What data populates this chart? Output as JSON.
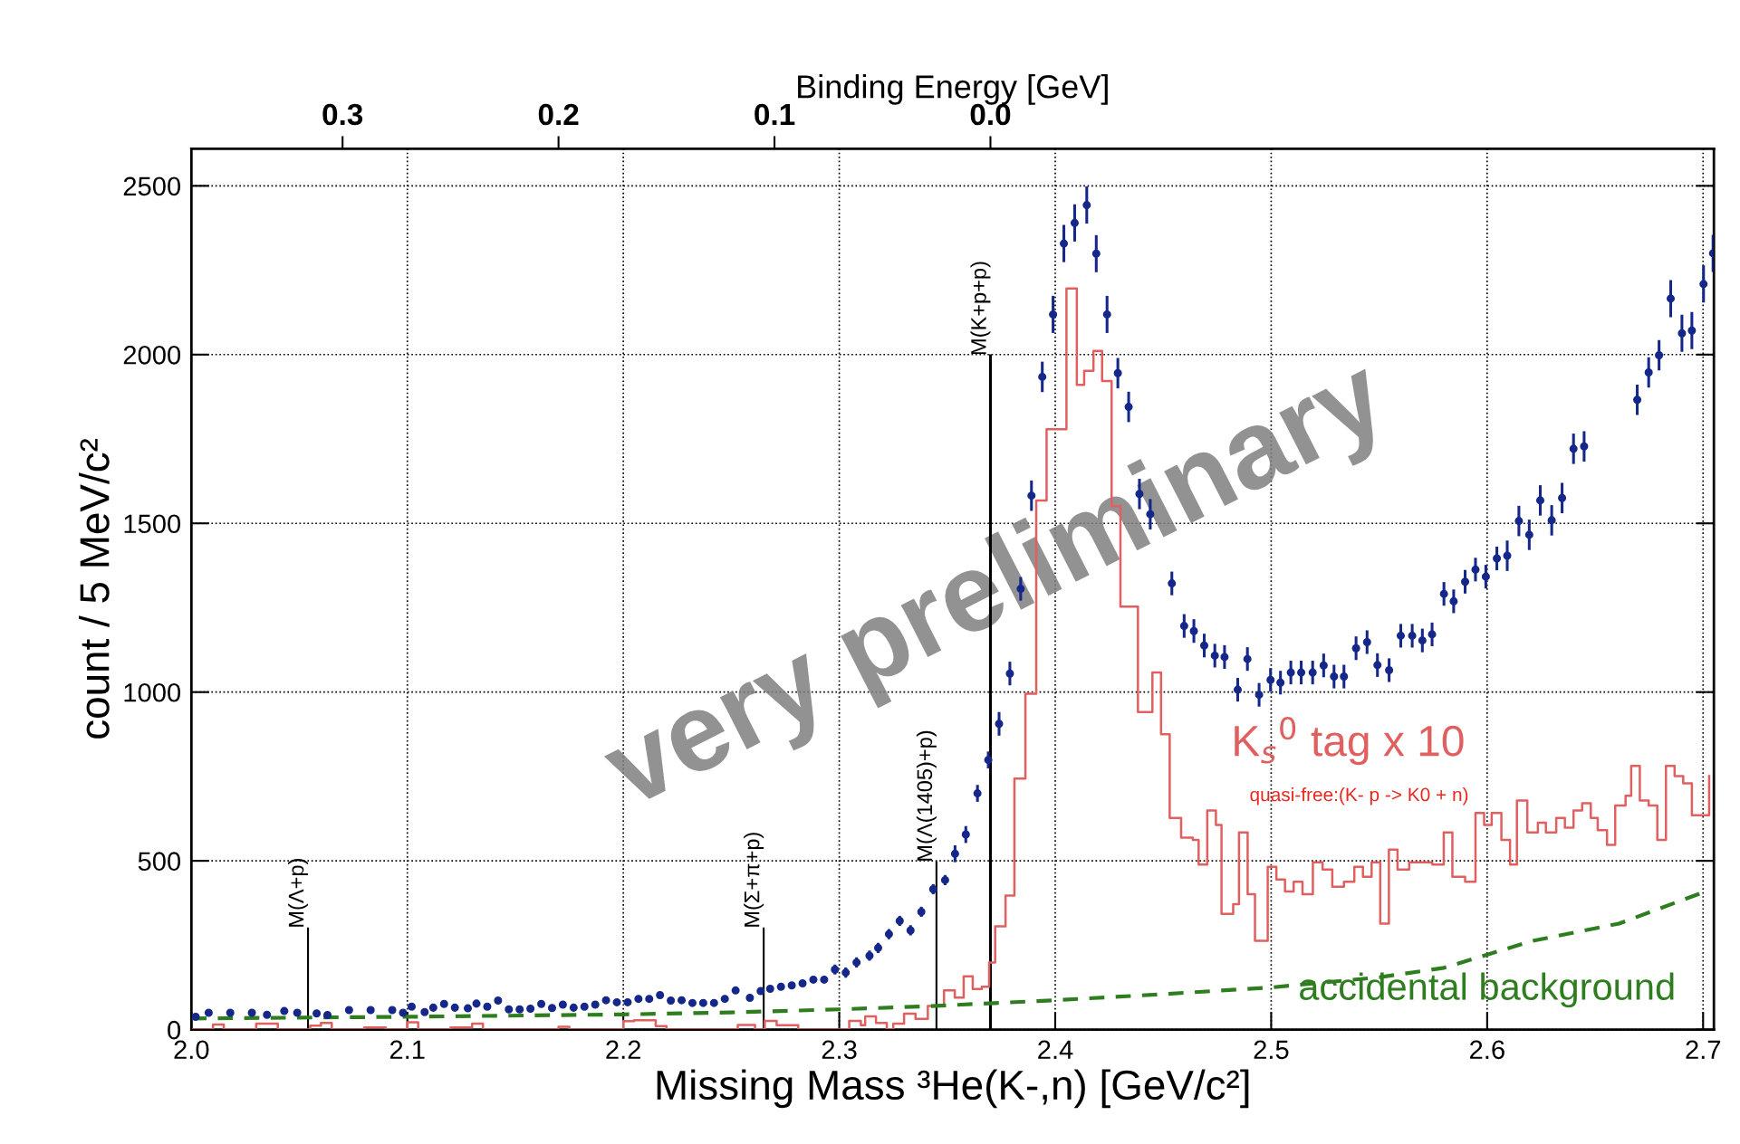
{
  "chart_data": {
    "type": "scatter",
    "xlabel": "Missing Mass ³He(K-,n) [GeV/c²]",
    "ylabel": "count / 5 MeV/c²",
    "x2label": "Binding Energy [GeV]",
    "xlim": [
      2.0,
      2.705
    ],
    "xticks": [
      {
        "value": 2.0,
        "label": "2.0"
      },
      2.1,
      2.2,
      2.3,
      2.4,
      2.5,
      2.6,
      2.7
    ],
    "ylim": [
      0,
      2610
    ],
    "yticks": [
      0,
      500,
      1000,
      1500,
      2000,
      2500
    ],
    "x2lim": [
      0.37,
      -0.335
    ],
    "x2ticks": [
      0.3,
      0.2,
      0.1,
      {
        "value": 0.0,
        "label": "0.0"
      }
    ],
    "grid": true,
    "series": [
      {
        "color": "#15288a",
        "marker": "circle",
        "x": [
          2.002,
          2.008,
          2.018,
          2.028,
          2.035,
          2.043,
          2.049,
          2.058,
          2.063,
          2.073,
          2.083,
          2.093,
          2.098,
          2.102,
          2.108,
          2.112,
          2.117,
          2.122,
          2.128,
          2.132,
          2.137,
          2.142,
          2.147,
          2.152,
          2.157,
          2.162,
          2.167,
          2.172,
          2.177,
          2.182,
          2.187,
          2.192,
          2.197,
          2.202,
          2.207,
          2.212,
          2.217,
          2.222,
          2.227,
          2.232,
          2.237,
          2.242,
          2.247,
          2.252,
          2.2586,
          2.2636,
          2.268,
          2.273,
          2.278,
          2.283,
          2.288,
          2.293,
          2.298,
          2.303,
          2.308,
          2.314,
          2.318,
          2.323,
          2.328,
          2.333,
          2.338,
          2.3435,
          2.349,
          2.3536,
          2.3586,
          2.364,
          2.369,
          2.374,
          2.379,
          2.384,
          2.389,
          2.394,
          2.399,
          2.404,
          2.409,
          2.4146,
          2.419,
          2.424,
          2.429,
          2.434,
          2.439,
          2.444,
          2.454,
          2.4597,
          2.4642,
          2.469,
          2.4739,
          2.4784,
          2.4845,
          2.489,
          2.4944,
          2.4997,
          2.5043,
          2.5091,
          2.5139,
          2.5192,
          2.5243,
          2.5291,
          2.5337,
          2.5393,
          2.5444,
          2.5492,
          2.5546,
          2.56,
          2.5653,
          2.57,
          2.5745,
          2.58,
          2.5845,
          2.5898,
          2.5946,
          2.5994,
          2.6045,
          2.6093,
          2.6147,
          2.6195,
          2.6246,
          2.6299,
          2.6347,
          2.64,
          2.6449,
          2.6695,
          2.6748,
          2.6796,
          2.685,
          2.6902,
          2.6948,
          2.7002,
          2.7046
        ],
        "values": [
          38,
          50,
          50,
          50,
          44,
          55,
          50,
          48,
          43,
          58,
          58,
          58,
          50,
          68,
          52,
          65,
          76,
          65,
          63,
          77,
          68,
          86,
          60,
          60,
          62,
          76,
          64,
          74,
          65,
          68,
          74,
          87,
          81,
          81,
          91,
          91,
          102,
          86,
          87,
          79,
          79,
          79,
          91,
          116,
          94,
          114,
          121,
          127,
          131,
          137,
          148,
          148,
          178,
          169,
          199,
          219,
          242,
          283,
          322,
          294,
          349,
          416,
          443,
          521,
          578,
          700,
          799,
          906,
          1055,
          1306,
          1582,
          1934,
          2119,
          2329,
          2390,
          2443,
          2299,
          2119,
          1945,
          1845,
          1587,
          1527,
          1322,
          1196,
          1181,
          1138,
          1108,
          1104,
          1007,
          1098,
          992,
          1036,
          1028,
          1058,
          1058,
          1058,
          1079,
          1046,
          1046,
          1130,
          1148,
          1080,
          1065,
          1167,
          1167,
          1153,
          1171,
          1291,
          1269,
          1327,
          1363,
          1342,
          1396,
          1404,
          1507,
          1466,
          1568,
          1509,
          1575,
          1721,
          1728,
          1866,
          1947,
          1998,
          2166,
          2063,
          2071,
          2209,
          2300
        ],
        "errors": [
          8,
          8,
          8,
          8,
          8,
          8,
          8,
          8,
          8,
          8,
          8,
          8,
          8,
          8,
          8,
          8,
          8,
          8,
          8,
          8,
          8,
          8,
          8,
          8,
          8,
          8,
          8,
          8,
          8,
          8,
          8,
          8,
          8,
          8,
          8,
          8,
          8,
          8,
          8,
          8,
          8,
          8,
          8,
          8,
          8,
          8,
          8,
          8,
          8,
          8,
          8,
          8,
          15,
          15,
          15,
          15,
          15,
          15,
          15,
          15,
          15,
          15,
          15,
          25,
          25,
          25,
          25,
          35,
          35,
          35,
          45,
          45,
          55,
          55,
          55,
          55,
          55,
          55,
          45,
          45,
          45,
          45,
          35,
          35,
          35,
          35,
          35,
          35,
          35,
          35,
          35,
          35,
          35,
          35,
          35,
          35,
          35,
          35,
          35,
          35,
          35,
          35,
          35,
          35,
          35,
          35,
          35,
          35,
          35,
          35,
          35,
          35,
          35,
          45,
          45,
          45,
          45,
          45,
          45,
          45,
          45,
          45,
          45,
          45,
          55,
          55,
          55,
          55,
          55
        ]
      },
      {
        "type": "step",
        "name": "K$_{s}$$^{0}$ tag x 10",
        "color": "#e06060",
        "x": [
          2.0,
          2.01,
          2.015,
          2.03,
          2.04,
          2.055,
          2.06,
          2.065,
          2.08,
          2.09,
          2.1,
          2.105,
          2.12,
          2.13,
          2.135,
          2.17,
          2.175,
          2.2,
          2.205,
          2.215,
          2.22,
          2.246,
          2.253,
          2.261,
          2.2655,
          2.271,
          2.281,
          2.3046,
          2.31,
          2.312,
          2.317,
          2.322,
          2.325,
          2.33,
          2.3353,
          2.341,
          2.3485,
          2.3535,
          2.3576,
          2.3618,
          2.366,
          2.3694,
          2.3722,
          2.377,
          2.3811,
          2.3862,
          2.3912,
          2.396,
          2.4052,
          2.41,
          2.4134,
          2.4177,
          2.4217,
          2.4261,
          2.4302,
          2.4383,
          2.445,
          2.449,
          2.453,
          2.4583,
          2.4637,
          2.4664,
          2.4704,
          2.4744,
          2.477,
          2.4824,
          2.4851,
          2.4891,
          2.4925,
          2.4984,
          2.5024,
          2.5064,
          2.5104,
          2.5145,
          2.5193,
          2.5238,
          2.5283,
          2.5337,
          2.5385,
          2.5425,
          2.5465,
          2.5505,
          2.5545,
          2.5585,
          2.5639,
          2.5692,
          2.5746,
          2.5799,
          2.5839,
          2.5898,
          2.5946,
          2.5986,
          2.6021,
          2.6066,
          2.6106,
          2.6138,
          2.6186,
          2.6235,
          2.6272,
          2.632,
          2.636,
          2.64,
          2.644,
          2.648,
          2.6512,
          2.6555,
          2.6593,
          2.6641,
          2.6667,
          2.6707,
          2.6748,
          2.6788,
          2.6828,
          2.6868,
          2.6908,
          2.6948,
          2.6988,
          2.7028
        ],
        "values": [
          0,
          15,
          0,
          18,
          0,
          12,
          20,
          0,
          6,
          0,
          22,
          0,
          6,
          18,
          0,
          8,
          0,
          25,
          28,
          10,
          0,
          0,
          14,
          0,
          26,
          13,
          0,
          26,
          13,
          39,
          20,
          0,
          18,
          47,
          32,
          70,
          116,
          95,
          158,
          120,
          127,
          199,
          306,
          397,
          744,
          995,
          1568,
          1779,
          2196,
          1910,
          1952,
          2011,
          1922,
          1551,
          1253,
          941,
          1058,
          875,
          627,
          569,
          562,
          489,
          649,
          606,
          343,
          372,
          584,
          401,
          263,
          482,
          445,
          409,
          438,
          401,
          496,
          474,
          423,
          438,
          482,
          453,
          496,
          314,
          533,
          474,
          496,
          496,
          489,
          584,
          453,
          438,
          642,
          606,
          642,
          562,
          489,
          679,
          584,
          613,
          584,
          627,
          598,
          649,
          671,
          627,
          591,
          547,
          664,
          693,
          781,
          679,
          664,
          562,
          781,
          751,
          730,
          635,
          635,
          751
        ]
      },
      {
        "type": "line",
        "name": "accidental background",
        "color": "#2e7d1e",
        "line_style": "dashed",
        "x": [
          2.0,
          2.1,
          2.2,
          2.25,
          2.3,
          2.34,
          2.4,
          2.45,
          2.5,
          2.55,
          2.58,
          2.621,
          2.661,
          2.701
        ],
        "values": [
          33,
          38,
          45,
          51,
          60,
          69,
          87,
          105,
          125,
          155,
          183,
          263,
          314,
          409
        ]
      }
    ],
    "annotations": [
      "very preliminary",
      "quasi-free:(K- p -> K0 + n)"
    ],
    "ref_lines": [
      {
        "axis": "x",
        "value": 2.054,
        "label": "M(Λ+p)"
      },
      {
        "axis": "x",
        "value": 2.265,
        "label": "M(Σ+π+p)"
      },
      {
        "axis": "x",
        "value": 2.345,
        "label": "M(Λ(1405)+p)"
      },
      {
        "axis": "x",
        "value": 2.37,
        "label": "M(K+p+p)"
      }
    ]
  }
}
